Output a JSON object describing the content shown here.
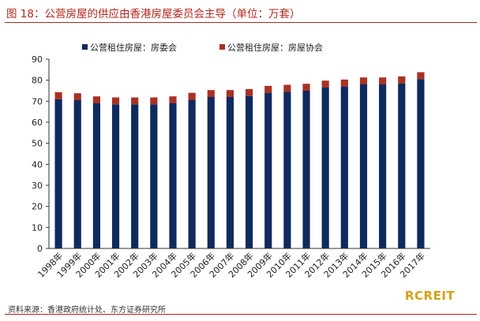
{
  "title": "图 18：公营房屋的供应由香港房屋委员会主导（单位：万套）",
  "source": "资料来源：香港政府统计处、东方证券研究所",
  "logo_text": "RCREIT",
  "colors": {
    "title": "#b3261e",
    "series_1": "#0e2a5e",
    "series_2": "#a83224",
    "logo": "#d4a017"
  },
  "chart_data": {
    "type": "bar",
    "stacked": true,
    "categories": [
      "1998年",
      "1999年",
      "2000年",
      "2001年",
      "2002年",
      "2003年",
      "2004年",
      "2005年",
      "2006年",
      "2007年",
      "2008年",
      "2009年",
      "2010年",
      "2011年",
      "2012年",
      "2013年",
      "2014年",
      "2015年",
      "2016年",
      "2017年"
    ],
    "series": [
      {
        "name": "公营租住房屋：房委会",
        "values": [
          71.0,
          70.5,
          69.0,
          68.5,
          68.5,
          68.5,
          69.0,
          70.5,
          72.0,
          72.0,
          72.5,
          74.0,
          74.5,
          75.0,
          76.5,
          77.0,
          78.0,
          78.0,
          78.5,
          80.5
        ]
      },
      {
        "name": "公营租住房屋：房屋协会",
        "values": [
          3.3,
          3.3,
          3.3,
          3.3,
          3.3,
          3.3,
          3.3,
          3.5,
          3.3,
          3.3,
          3.3,
          3.3,
          3.3,
          3.3,
          3.3,
          3.3,
          3.3,
          3.3,
          3.3,
          3.3
        ]
      }
    ],
    "ylim": [
      0,
      90
    ],
    "yticks": [
      0,
      10,
      20,
      30,
      40,
      50,
      60,
      70,
      80,
      90
    ],
    "grid": false,
    "legend": "top-center"
  }
}
